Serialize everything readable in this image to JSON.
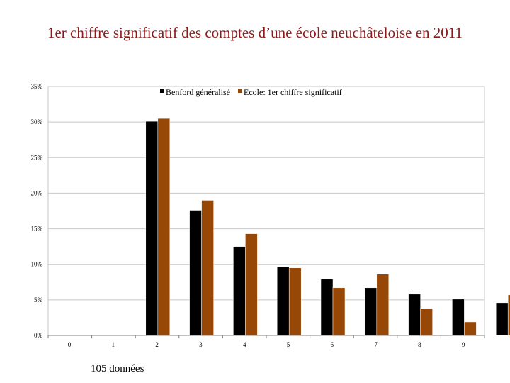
{
  "title": "1er chiffre significatif des comptes d’une école neuchâteloise en 2011",
  "footnote": "105 données",
  "colors": {
    "series1": "#000000",
    "series2": "#974706",
    "grid": "#c8c8c8",
    "axis": "#808080"
  },
  "chart_data": {
    "type": "bar",
    "categories": [
      "0",
      "1",
      "2",
      "3",
      "4",
      "5",
      "6",
      "7",
      "8",
      "9"
    ],
    "series": [
      {
        "name": "Benford généralisé",
        "values": [
          0,
          30.1,
          17.6,
          12.5,
          9.7,
          7.9,
          6.7,
          5.8,
          5.1,
          4.6
        ]
      },
      {
        "name": "Ecole: 1er chiffre significatif",
        "values": [
          0,
          30.5,
          19.0,
          14.3,
          9.5,
          6.7,
          8.6,
          3.8,
          1.9,
          5.7
        ]
      }
    ],
    "yticks": [
      "0%",
      "5%",
      "10%",
      "15%",
      "20%",
      "25%",
      "30%",
      "35%"
    ],
    "ylim": [
      0,
      35
    ],
    "grid": true,
    "legend_position": "top-center"
  }
}
